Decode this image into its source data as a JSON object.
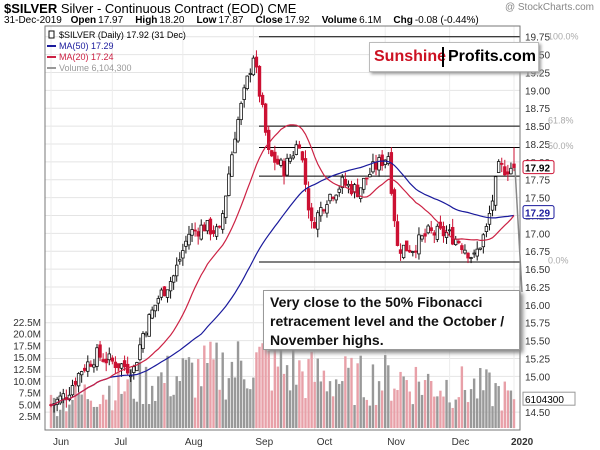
{
  "header": {
    "symbol": "$SILVER",
    "description": "Silver - Continuous Contract (EOD)",
    "exchange": "CME",
    "copyright": "@ StockCharts.com",
    "date": "31-Dec-2019",
    "stats": [
      {
        "label": "Open",
        "value": "17.97"
      },
      {
        "label": "High",
        "value": "18.20"
      },
      {
        "label": "Low",
        "value": "17.87"
      },
      {
        "label": "Close",
        "value": "17.92"
      },
      {
        "label": "Volume",
        "value": "6.1M"
      },
      {
        "label": "Chg",
        "value": "-0.08 (-0.44%)"
      }
    ]
  },
  "brand": {
    "part1": "Sunshine",
    "part2": "Profits.com"
  },
  "annotation": {
    "text": "Very close to the 50% Fibonacci retracement level and the October / November highs."
  },
  "colors": {
    "ma50": "#1a1a9c",
    "ma20": "#cc2244",
    "up_candle": "#111111",
    "down_candle": "#cc1133",
    "vol_up": "#999999",
    "vol_down": "#e8a0a8"
  },
  "chart_data": {
    "type": "candlestick",
    "legend": [
      {
        "label": "$SILVER (Daily) 17.92 (31 Dec)",
        "swatch": "candle"
      },
      {
        "label": "MA(50) 17.29",
        "color": "#1a1a9c"
      },
      {
        "label": "MA(20) 17.24",
        "color": "#cc2244"
      },
      {
        "label": "Volume 6,104,300",
        "color": "#999999"
      }
    ],
    "x_labels": [
      "Jun",
      "Jul",
      "Aug",
      "Sep",
      "Oct",
      "Nov",
      "Dec",
      "2020"
    ],
    "price_axis": {
      "ylim": [
        14.25,
        19.9
      ],
      "ticks": [
        "14.50",
        "15.00",
        "15.25",
        "15.50",
        "15.75",
        "16.00",
        "16.25",
        "16.50",
        "16.75",
        "17.00",
        "17.25",
        "17.50",
        "17.75",
        "18.00",
        "18.25",
        "18.50",
        "18.75",
        "19.00",
        "19.25",
        "19.50",
        "19.75"
      ]
    },
    "volume_axis": {
      "ylim": [
        0,
        25000000
      ],
      "ticks": [
        "2.5M",
        "5.0M",
        "7.5M",
        "10.0M",
        "12.5M",
        "15.0M",
        "17.5M",
        "20.0M",
        "22.5M"
      ],
      "last_value_label": "6104300"
    },
    "price_markers": [
      {
        "label": "17.92",
        "value": 17.92,
        "color": "#cc1133"
      },
      {
        "label": "17.29",
        "value": 17.29,
        "color": "#1a1a9c"
      }
    ],
    "fibonacci": [
      {
        "label": "100.0%",
        "value": 19.75
      },
      {
        "label": "61.8%",
        "value": 18.58
      },
      {
        "label": "50.0%",
        "value": 18.22
      },
      {
        "label": "0.0%",
        "value": 16.62
      }
    ],
    "horizontal_lines": [
      19.75,
      18.5,
      18.2,
      17.8,
      16.6
    ],
    "anchors": [
      [
        "2019-06-03",
        14.6
      ],
      [
        "2019-06-10",
        14.75
      ],
      [
        "2019-06-17",
        15.1
      ],
      [
        "2019-06-24",
        15.3
      ],
      [
        "2019-07-01",
        15.2
      ],
      [
        "2019-07-10",
        15.1
      ],
      [
        "2019-07-15",
        15.6
      ],
      [
        "2019-07-22",
        16.1
      ],
      [
        "2019-07-29",
        16.4
      ],
      [
        "2019-08-05",
        17.0
      ],
      [
        "2019-08-12",
        17.1
      ],
      [
        "2019-08-19",
        17.0
      ],
      [
        "2019-08-26",
        18.4
      ],
      [
        "2019-09-03",
        19.5
      ],
      [
        "2019-09-06",
        18.7
      ],
      [
        "2019-09-10",
        18.1
      ],
      [
        "2019-09-17",
        17.9
      ],
      [
        "2019-09-24",
        18.3
      ],
      [
        "2019-09-30",
        17.1
      ],
      [
        "2019-10-07",
        17.5
      ],
      [
        "2019-10-14",
        17.7
      ],
      [
        "2019-10-21",
        17.6
      ],
      [
        "2019-10-28",
        17.9
      ],
      [
        "2019-11-04",
        18.1
      ],
      [
        "2019-11-07",
        16.8
      ],
      [
        "2019-11-14",
        16.8
      ],
      [
        "2019-11-21",
        17.0
      ],
      [
        "2019-11-29",
        17.0
      ],
      [
        "2019-12-05",
        16.9
      ],
      [
        "2019-12-12",
        16.65
      ],
      [
        "2019-12-18",
        17.05
      ],
      [
        "2019-12-24",
        17.9
      ],
      [
        "2019-12-31",
        17.92
      ]
    ],
    "volume_profile": [
      [
        "2019-06-03",
        5200000
      ],
      [
        "2019-06-20",
        7500000
      ],
      [
        "2019-07-10",
        9000000
      ],
      [
        "2019-07-31",
        11000000
      ],
      [
        "2019-08-20",
        12500000
      ],
      [
        "2019-09-05",
        14000000
      ],
      [
        "2019-09-30",
        11000000
      ],
      [
        "2019-10-20",
        10000000
      ],
      [
        "2019-11-10",
        10500000
      ],
      [
        "2019-12-01",
        9000000
      ],
      [
        "2019-12-20",
        8000000
      ],
      [
        "2019-12-31",
        6104300
      ]
    ]
  }
}
